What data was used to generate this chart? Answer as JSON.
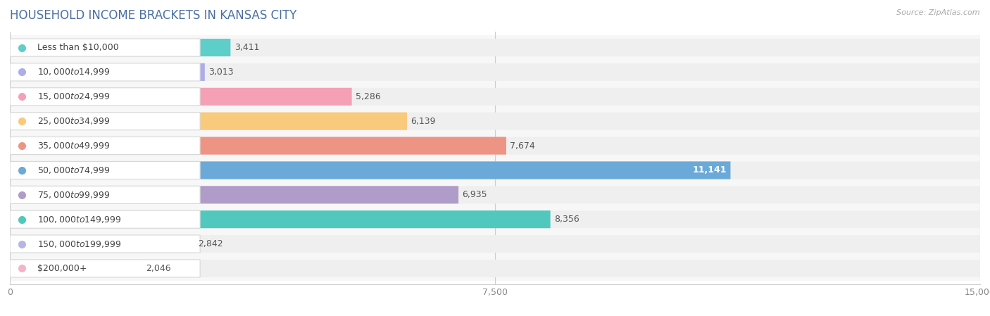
{
  "title": "HOUSEHOLD INCOME BRACKETS IN KANSAS CITY",
  "source": "Source: ZipAtlas.com",
  "categories": [
    "Less than $10,000",
    "$10,000 to $14,999",
    "$15,000 to $24,999",
    "$25,000 to $34,999",
    "$35,000 to $49,999",
    "$50,000 to $74,999",
    "$75,000 to $99,999",
    "$100,000 to $149,999",
    "$150,000 to $199,999",
    "$200,000+"
  ],
  "values": [
    3411,
    3013,
    5286,
    6139,
    7674,
    11141,
    6935,
    8356,
    2842,
    2046
  ],
  "bar_colors": [
    "#5ECECA",
    "#ADADEC",
    "#F5A0B5",
    "#F9C97C",
    "#EE9484",
    "#6BAAD8",
    "#B09CC8",
    "#50C8BE",
    "#B8B4E8",
    "#F4B4C8"
  ],
  "xlim": [
    0,
    15000
  ],
  "xticks": [
    0,
    7500,
    15000
  ],
  "background_color": "#ffffff",
  "bar_background_color": "#efefef",
  "row_background_color": "#f7f7f7",
  "title_fontsize": 12,
  "label_fontsize": 9,
  "value_fontsize": 9,
  "title_color": "#4a6fa5",
  "source_color": "#aaaaaa"
}
